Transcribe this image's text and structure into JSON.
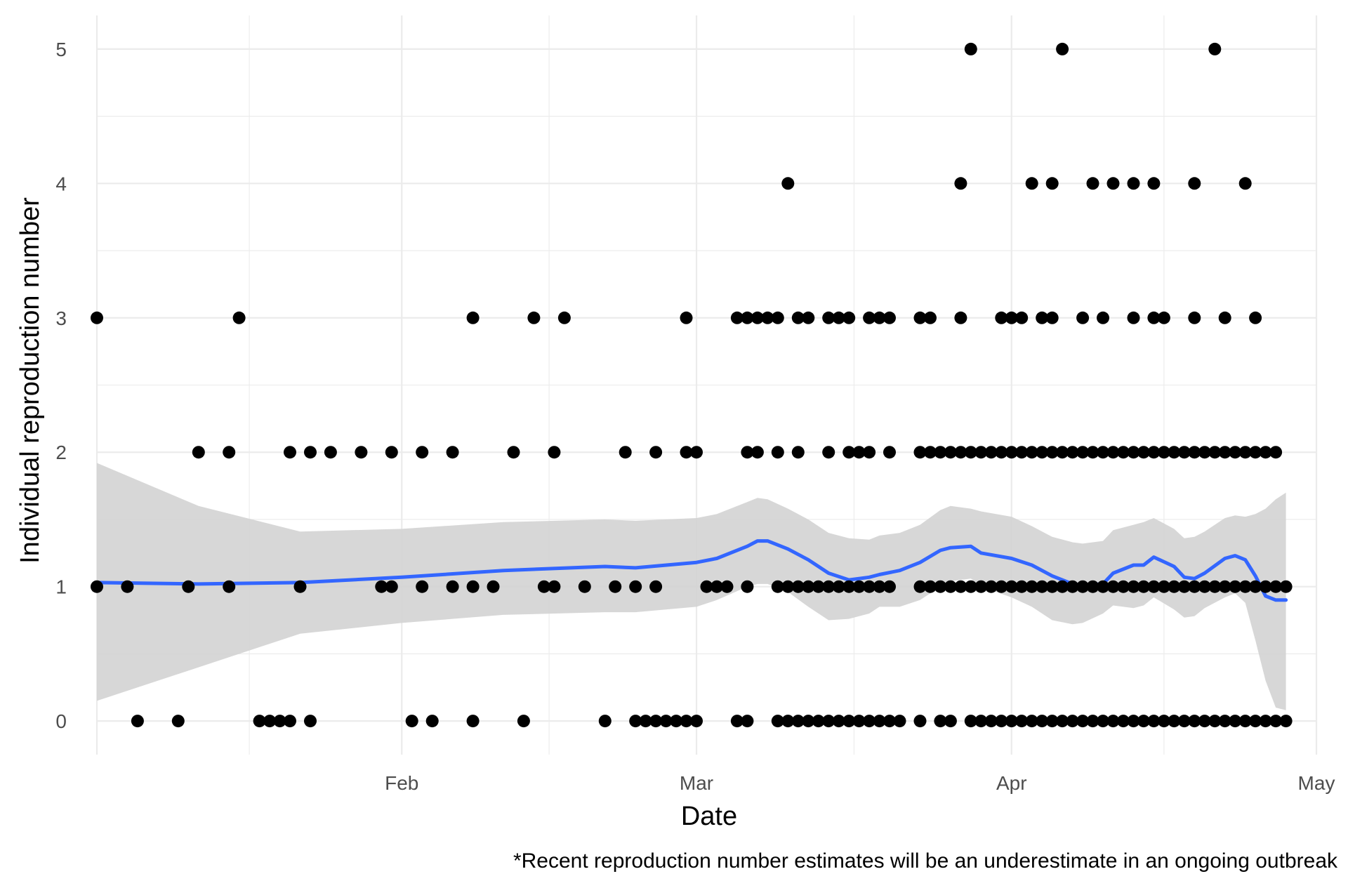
{
  "chart_data": {
    "type": "scatter",
    "title": "",
    "xlabel": "Date",
    "ylabel": "Individual reproduction number",
    "caption": "*Recent reproduction number estimates will be an underestimate in an ongoing outbreak",
    "x_axis": {
      "type": "date",
      "min": "2020-01-02",
      "max": "2020-05-01",
      "ticks": [
        {
          "value": "2020-02-01",
          "label": "Feb"
        },
        {
          "value": "2020-03-01",
          "label": "Mar"
        },
        {
          "value": "2020-04-01",
          "label": "Apr"
        },
        {
          "value": "2020-05-01",
          "label": "May"
        }
      ]
    },
    "y_axis": {
      "min": -0.25,
      "max": 5.25,
      "ticks": [
        {
          "value": 0,
          "label": "0"
        },
        {
          "value": 1,
          "label": "1"
        },
        {
          "value": 2,
          "label": "2"
        },
        {
          "value": 3,
          "label": "3"
        },
        {
          "value": 4,
          "label": "4"
        },
        {
          "value": 5,
          "label": "5"
        }
      ]
    },
    "grid": true,
    "legend": "none",
    "colors": {
      "points": "#000000",
      "smooth_line": "#3366FF",
      "confidence_band": "#d3d3d3",
      "grid": "#ebebeb"
    },
    "points": {
      "0": [
        "2020-01-06",
        "2020-01-10",
        "2020-01-18",
        "2020-01-19",
        "2020-01-20",
        "2020-01-21",
        "2020-01-23",
        "2020-02-02",
        "2020-02-04",
        "2020-02-08",
        "2020-02-13",
        "2020-02-21",
        "2020-02-24",
        "2020-02-25",
        "2020-02-26",
        "2020-02-27",
        "2020-02-28",
        "2020-02-29",
        "2020-03-01",
        "2020-03-05",
        "2020-03-06",
        "2020-03-09",
        "2020-03-10",
        "2020-03-11",
        "2020-03-12",
        "2020-03-13",
        "2020-03-14",
        "2020-03-15",
        "2020-03-16",
        "2020-03-17",
        "2020-03-18",
        "2020-03-19",
        "2020-03-20",
        "2020-03-21",
        "2020-03-23",
        "2020-03-25",
        "2020-03-26",
        "2020-03-28",
        "2020-03-29",
        "2020-03-30",
        "2020-03-31",
        "2020-04-01",
        "2020-04-02",
        "2020-04-03",
        "2020-04-04",
        "2020-04-05",
        "2020-04-06",
        "2020-04-07",
        "2020-04-08",
        "2020-04-09",
        "2020-04-10",
        "2020-04-11",
        "2020-04-12",
        "2020-04-13",
        "2020-04-14",
        "2020-04-15",
        "2020-04-16",
        "2020-04-17",
        "2020-04-18",
        "2020-04-19",
        "2020-04-20",
        "2020-04-21",
        "2020-04-22",
        "2020-04-23",
        "2020-04-24",
        "2020-04-25",
        "2020-04-26",
        "2020-04-27",
        "2020-04-28"
      ],
      "1": [
        "2020-01-02",
        "2020-01-05",
        "2020-01-11",
        "2020-01-15",
        "2020-01-22",
        "2020-01-30",
        "2020-01-31",
        "2020-02-03",
        "2020-02-06",
        "2020-02-08",
        "2020-02-10",
        "2020-02-15",
        "2020-02-16",
        "2020-02-19",
        "2020-02-22",
        "2020-02-24",
        "2020-02-26",
        "2020-03-02",
        "2020-03-03",
        "2020-03-04",
        "2020-03-06",
        "2020-03-09",
        "2020-03-10",
        "2020-03-11",
        "2020-03-12",
        "2020-03-13",
        "2020-03-14",
        "2020-03-15",
        "2020-03-16",
        "2020-03-17",
        "2020-03-18",
        "2020-03-19",
        "2020-03-20",
        "2020-03-23",
        "2020-03-24",
        "2020-03-25",
        "2020-03-26",
        "2020-03-27",
        "2020-03-28",
        "2020-03-29",
        "2020-03-30",
        "2020-03-31",
        "2020-04-01",
        "2020-04-02",
        "2020-04-03",
        "2020-04-04",
        "2020-04-05",
        "2020-04-06",
        "2020-04-07",
        "2020-04-08",
        "2020-04-09",
        "2020-04-10",
        "2020-04-11",
        "2020-04-12",
        "2020-04-13",
        "2020-04-14",
        "2020-04-15",
        "2020-04-16",
        "2020-04-17",
        "2020-04-18",
        "2020-04-19",
        "2020-04-20",
        "2020-04-21",
        "2020-04-22",
        "2020-04-23",
        "2020-04-24",
        "2020-04-25",
        "2020-04-26",
        "2020-04-27",
        "2020-04-28"
      ],
      "2": [
        "2020-01-12",
        "2020-01-15",
        "2020-01-21",
        "2020-01-23",
        "2020-01-25",
        "2020-01-28",
        "2020-01-31",
        "2020-02-03",
        "2020-02-06",
        "2020-02-12",
        "2020-02-16",
        "2020-02-23",
        "2020-02-26",
        "2020-02-29",
        "2020-03-01",
        "2020-03-06",
        "2020-03-07",
        "2020-03-09",
        "2020-03-11",
        "2020-03-14",
        "2020-03-16",
        "2020-03-17",
        "2020-03-18",
        "2020-03-20",
        "2020-03-23",
        "2020-03-24",
        "2020-03-25",
        "2020-03-26",
        "2020-03-27",
        "2020-03-28",
        "2020-03-29",
        "2020-03-30",
        "2020-03-31",
        "2020-04-01",
        "2020-04-02",
        "2020-04-03",
        "2020-04-04",
        "2020-04-05",
        "2020-04-06",
        "2020-04-07",
        "2020-04-08",
        "2020-04-09",
        "2020-04-10",
        "2020-04-11",
        "2020-04-12",
        "2020-04-13",
        "2020-04-14",
        "2020-04-15",
        "2020-04-16",
        "2020-04-17",
        "2020-04-18",
        "2020-04-19",
        "2020-04-20",
        "2020-04-21",
        "2020-04-22",
        "2020-04-23",
        "2020-04-24",
        "2020-04-25",
        "2020-04-26",
        "2020-04-27"
      ],
      "3": [
        "2020-01-02",
        "2020-01-16",
        "2020-02-08",
        "2020-02-14",
        "2020-02-17",
        "2020-02-29",
        "2020-03-05",
        "2020-03-06",
        "2020-03-07",
        "2020-03-08",
        "2020-03-09",
        "2020-03-11",
        "2020-03-12",
        "2020-03-14",
        "2020-03-15",
        "2020-03-16",
        "2020-03-18",
        "2020-03-19",
        "2020-03-20",
        "2020-03-23",
        "2020-03-24",
        "2020-03-27",
        "2020-03-31",
        "2020-04-01",
        "2020-04-02",
        "2020-04-04",
        "2020-04-05",
        "2020-04-08",
        "2020-04-10",
        "2020-04-13",
        "2020-04-15",
        "2020-04-16",
        "2020-04-19",
        "2020-04-22",
        "2020-04-25"
      ],
      "4": [
        "2020-03-10",
        "2020-03-27",
        "2020-04-03",
        "2020-04-05",
        "2020-04-09",
        "2020-04-11",
        "2020-04-13",
        "2020-04-15",
        "2020-04-19",
        "2020-04-24"
      ],
      "5": [
        "2020-03-28",
        "2020-04-06",
        "2020-04-21"
      ]
    },
    "smooth_line": {
      "x": [
        "2020-01-02",
        "2020-01-12",
        "2020-01-22",
        "2020-02-01",
        "2020-02-11",
        "2020-02-21",
        "2020-02-24",
        "2020-03-01",
        "2020-03-03",
        "2020-03-06",
        "2020-03-07",
        "2020-03-08",
        "2020-03-10",
        "2020-03-12",
        "2020-03-14",
        "2020-03-16",
        "2020-03-18",
        "2020-03-19",
        "2020-03-21",
        "2020-03-23",
        "2020-03-25",
        "2020-03-26",
        "2020-03-28",
        "2020-03-29",
        "2020-04-01",
        "2020-04-03",
        "2020-04-05",
        "2020-04-07",
        "2020-04-08",
        "2020-04-10",
        "2020-04-11",
        "2020-04-13",
        "2020-04-14",
        "2020-04-15",
        "2020-04-17",
        "2020-04-18",
        "2020-04-19",
        "2020-04-20",
        "2020-04-22",
        "2020-04-23",
        "2020-04-24",
        "2020-04-25",
        "2020-04-26",
        "2020-04-27",
        "2020-04-28"
      ],
      "y": [
        1.03,
        1.02,
        1.03,
        1.07,
        1.12,
        1.15,
        1.14,
        1.18,
        1.21,
        1.3,
        1.34,
        1.34,
        1.28,
        1.2,
        1.1,
        1.05,
        1.07,
        1.09,
        1.12,
        1.18,
        1.27,
        1.29,
        1.3,
        1.25,
        1.21,
        1.16,
        1.08,
        1.02,
        1.01,
        1.02,
        1.1,
        1.16,
        1.16,
        1.22,
        1.15,
        1.07,
        1.06,
        1.1,
        1.21,
        1.23,
        1.2,
        1.08,
        0.93,
        0.9,
        0.9
      ],
      "lower": [
        0.15,
        0.4,
        0.65,
        0.73,
        0.79,
        0.81,
        0.81,
        0.85,
        0.9,
        1.0,
        1.02,
        1.02,
        0.96,
        0.85,
        0.75,
        0.76,
        0.8,
        0.85,
        0.85,
        0.9,
        1.0,
        1.04,
        1.06,
        1.0,
        0.92,
        0.85,
        0.75,
        0.72,
        0.73,
        0.8,
        0.86,
        0.84,
        0.86,
        0.92,
        0.83,
        0.77,
        0.78,
        0.84,
        0.92,
        0.95,
        0.88,
        0.6,
        0.3,
        0.1,
        0.08
      ],
      "upper": [
        1.92,
        1.6,
        1.41,
        1.43,
        1.48,
        1.5,
        1.49,
        1.51,
        1.54,
        1.63,
        1.66,
        1.65,
        1.58,
        1.5,
        1.4,
        1.36,
        1.35,
        1.38,
        1.4,
        1.46,
        1.57,
        1.6,
        1.58,
        1.56,
        1.52,
        1.45,
        1.37,
        1.33,
        1.32,
        1.34,
        1.42,
        1.46,
        1.48,
        1.51,
        1.43,
        1.36,
        1.37,
        1.41,
        1.51,
        1.53,
        1.52,
        1.54,
        1.58,
        1.65,
        1.7
      ]
    }
  }
}
